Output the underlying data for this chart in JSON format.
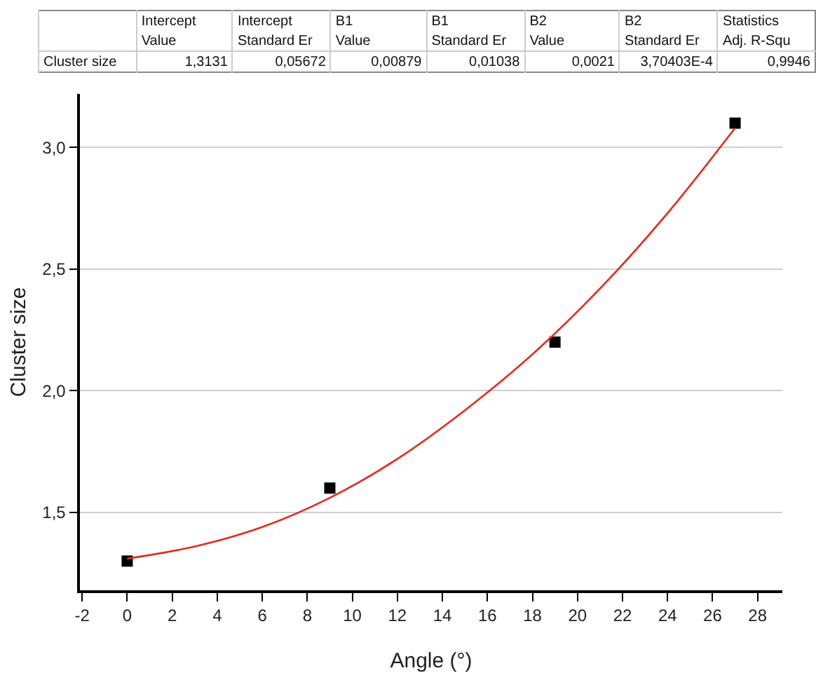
{
  "chart_data": {
    "type": "scatter",
    "xlabel": "Angle (°)",
    "ylabel": "Cluster size",
    "xlim": [
      -2.1,
      29.1
    ],
    "ylim": [
      1.18,
      3.22
    ],
    "xticks": [
      -2,
      0,
      2,
      4,
      6,
      8,
      10,
      12,
      14,
      16,
      18,
      20,
      22,
      24,
      26,
      28
    ],
    "yticks": [
      {
        "value": 1.5,
        "label": "1,5"
      },
      {
        "value": 2,
        "label": "2,0"
      },
      {
        "value": 2.5,
        "label": "2,5"
      },
      {
        "value": 3,
        "label": "3,0"
      }
    ],
    "grid": "y",
    "series": [
      {
        "color": "#000000",
        "marker": "square",
        "x": [
          0,
          9,
          19,
          27
        ],
        "values": [
          1.3,
          1.6,
          2.2,
          3.1
        ]
      },
      {
        "type": "line",
        "color": "#e8281e",
        "marker": "none",
        "line_style": "solid",
        "x": [
          0,
          3,
          6,
          9,
          12,
          15,
          18,
          21,
          24,
          27
        ],
        "values": [
          1.31,
          1.36,
          1.44,
          1.56,
          1.72,
          1.92,
          2.15,
          2.42,
          2.73,
          3.08
        ]
      }
    ],
    "annotations": [
      "Intercept",
      "Intercept",
      "B1",
      "B1",
      "B2",
      "B2",
      "Statistics",
      "Value",
      "Standard Er",
      "Value",
      "Standard Er",
      "Value",
      "Standard Er",
      "Adj. R-Squ",
      "Cluster size",
      "1,3131",
      "0,05672",
      "0,00879",
      "0,01038",
      "0,0021",
      "3,70403E-4",
      "0,9946"
    ]
  }
}
